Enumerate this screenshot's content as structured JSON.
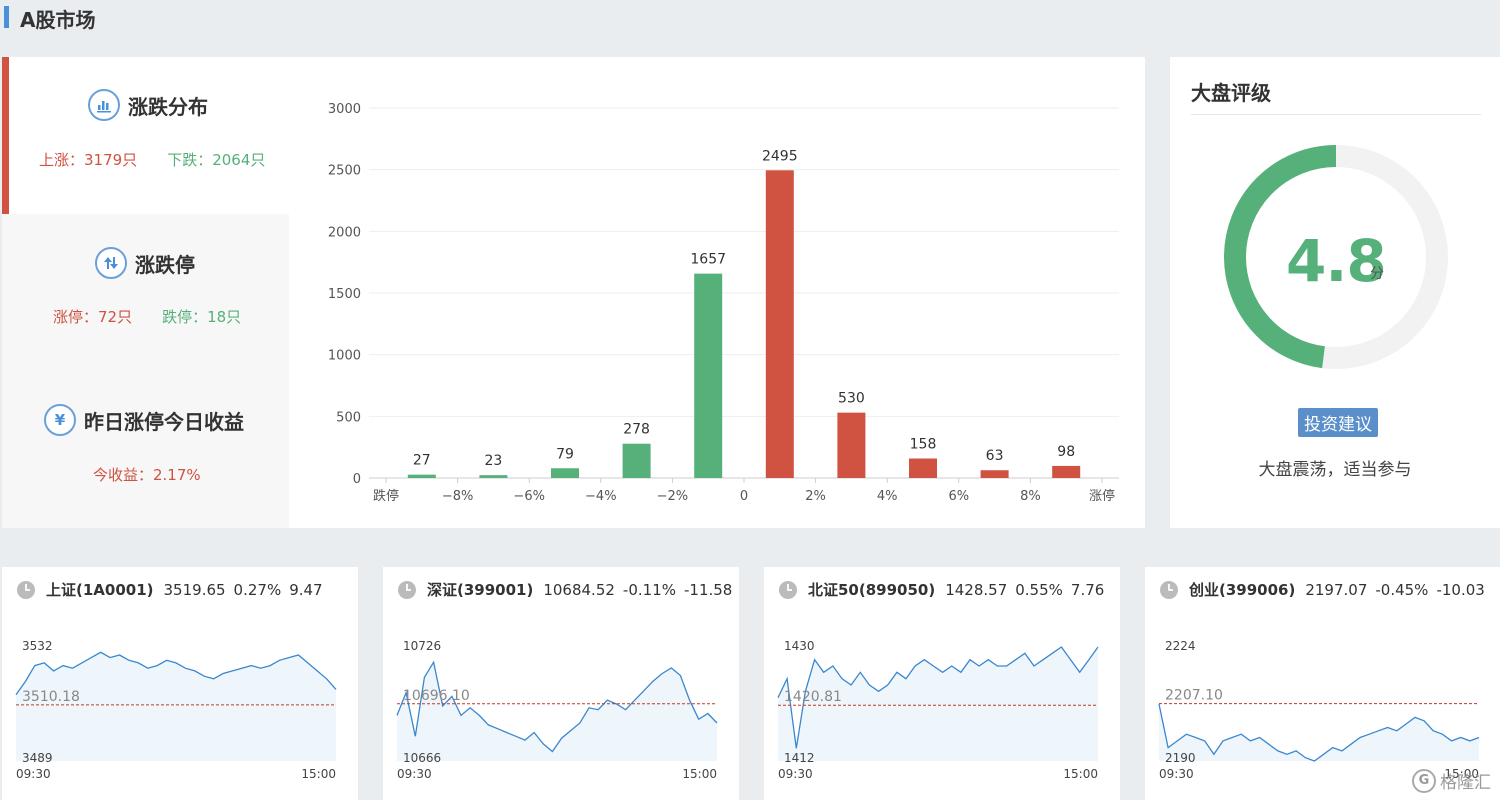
{
  "page_title": "A股市场",
  "distribution": {
    "title": "涨跌分布",
    "up_label": "上涨：3179只",
    "down_label": "下跌：2064只"
  },
  "limit": {
    "title": "涨跌停",
    "up_label": "涨停：72只",
    "down_label": "跌停：18只"
  },
  "yesterday": {
    "title": "昨日涨停今日收益",
    "income_label": "今收益：2.17%"
  },
  "chart_data": {
    "type": "bar",
    "categories": [
      "跌停",
      "−8%",
      "−6%",
      "−4%",
      "−2%",
      "0",
      "2%",
      "4%",
      "6%",
      "8%",
      "涨停"
    ],
    "bar_values": [
      27,
      23,
      79,
      278,
      1657,
      2495,
      530,
      158,
      63,
      98
    ],
    "bar_colors": [
      "#55b07a",
      "#55b07a",
      "#55b07a",
      "#55b07a",
      "#55b07a",
      "#d05240",
      "#d05240",
      "#d05240",
      "#d05240",
      "#d05240"
    ],
    "yticks": [
      0,
      500,
      1000,
      1500,
      2000,
      2500,
      3000
    ],
    "ylim": [
      0,
      3000
    ]
  },
  "rating": {
    "title": "大盘评级",
    "score": "4.8",
    "score_value": 4.8,
    "score_max": 10,
    "unit": "分",
    "advice_button": "投资建议",
    "advice_text": "大盘震荡，适当参与",
    "gauge_color": "#55b07a",
    "track_color": "#f2f2f2"
  },
  "indices": [
    {
      "name": "上证(1A0001)",
      "price": "3519.65",
      "pct": "0.27%",
      "change": "9.47",
      "high": "3532",
      "ref": "3510.18",
      "low": "3489",
      "start": "09:30",
      "end": "15:00",
      "series": [
        3514,
        3519,
        3525,
        3526,
        3523,
        3525,
        3524,
        3526,
        3528,
        3530,
        3528,
        3529,
        3527,
        3526,
        3524,
        3525,
        3527,
        3526,
        3524,
        3523,
        3521,
        3520,
        3522,
        3523,
        3524,
        3525,
        3524,
        3525,
        3527,
        3528,
        3529,
        3526,
        3523,
        3520,
        3516
      ]
    },
    {
      "name": "深证(399001)",
      "price": "10684.52",
      "pct": "-0.11%",
      "change": "-11.58",
      "high": "10726",
      "ref": "10696.10",
      "low": "10666",
      "start": "09:30",
      "end": "15:00",
      "series": [
        10690,
        10702,
        10679,
        10710,
        10718,
        10695,
        10700,
        10690,
        10694,
        10690,
        10685,
        10683,
        10681,
        10679,
        10677,
        10681,
        10675,
        10671,
        10678,
        10682,
        10686,
        10694,
        10693,
        10698,
        10696,
        10693,
        10698,
        10703,
        10708,
        10712,
        10715,
        10711,
        10698,
        10688,
        10691,
        10686
      ]
    },
    {
      "name": "北证50(899050)",
      "price": "1428.57",
      "pct": "0.55%",
      "change": "7.76",
      "high": "1430",
      "ref": "1420.81",
      "low": "1412",
      "start": "09:30",
      "end": "15:00",
      "series": [
        1422,
        1425,
        1414,
        1423,
        1428,
        1426,
        1427,
        1425,
        1424,
        1426,
        1424,
        1423,
        1424,
        1426,
        1425,
        1427,
        1428,
        1427,
        1426,
        1427,
        1426,
        1428,
        1427,
        1428,
        1427,
        1427,
        1428,
        1429,
        1427,
        1428,
        1429,
        1430,
        1428,
        1426,
        1428,
        1430
      ]
    },
    {
      "name": "创业(399006)",
      "price": "2197.07",
      "pct": "-0.45%",
      "change": "-10.03",
      "high": "2224",
      "ref": "2207.10",
      "low": "2190",
      "start": "09:30",
      "end": "15:00",
      "series": [
        2207,
        2194,
        2196,
        2198,
        2197,
        2196,
        2192,
        2196,
        2197,
        2198,
        2196,
        2197,
        2195,
        2193,
        2192,
        2193,
        2191,
        2190,
        2192,
        2194,
        2193,
        2195,
        2197,
        2198,
        2199,
        2200,
        2199,
        2201,
        2203,
        2202,
        2199,
        2198,
        2196,
        2197,
        2196,
        2197
      ]
    }
  ],
  "watermark": "格隆汇",
  "watermark_logo": "G",
  "colors": {
    "up": "#d05240",
    "down": "#55b07a",
    "line": "#3a87d0",
    "accent": "#4a90d9"
  }
}
